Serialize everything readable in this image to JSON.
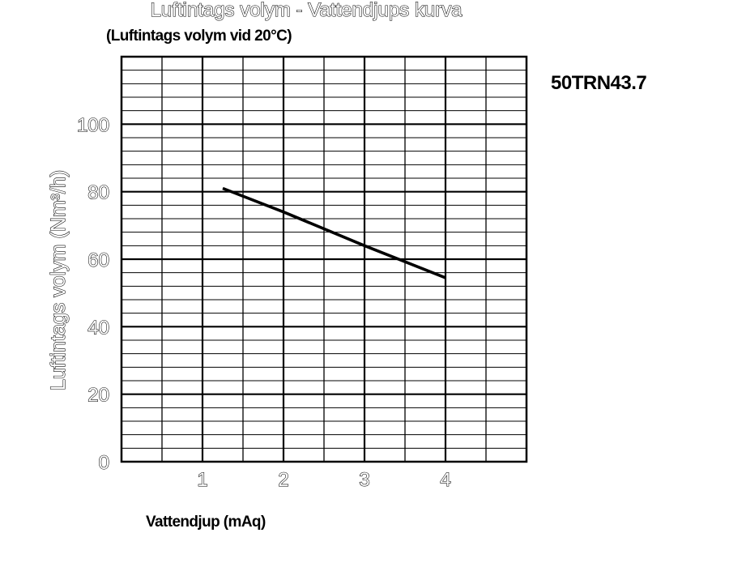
{
  "chart_data": {
    "type": "line",
    "title": "Luftintags volym - Vattendjups kurva",
    "subtitle": "(Luftintags volym vid 20°C)",
    "model": "50TRN43.7",
    "xlabel": "Vattendjup (mAq)",
    "ylabel": "Luftintags volym (Nm³/h)",
    "xlim": [
      0,
      5
    ],
    "ylim": [
      0,
      120
    ],
    "x_ticks": [
      1,
      2,
      3,
      4
    ],
    "y_ticks": [
      0,
      20,
      40,
      60,
      80,
      100
    ],
    "x_minor_step": 0.5,
    "y_minor_step": 4,
    "grid": true,
    "line_color": "#000000",
    "series": [
      {
        "x": [
          1.25,
          2,
          3,
          4
        ],
        "y": [
          81,
          74,
          64,
          54.5
        ]
      }
    ]
  }
}
